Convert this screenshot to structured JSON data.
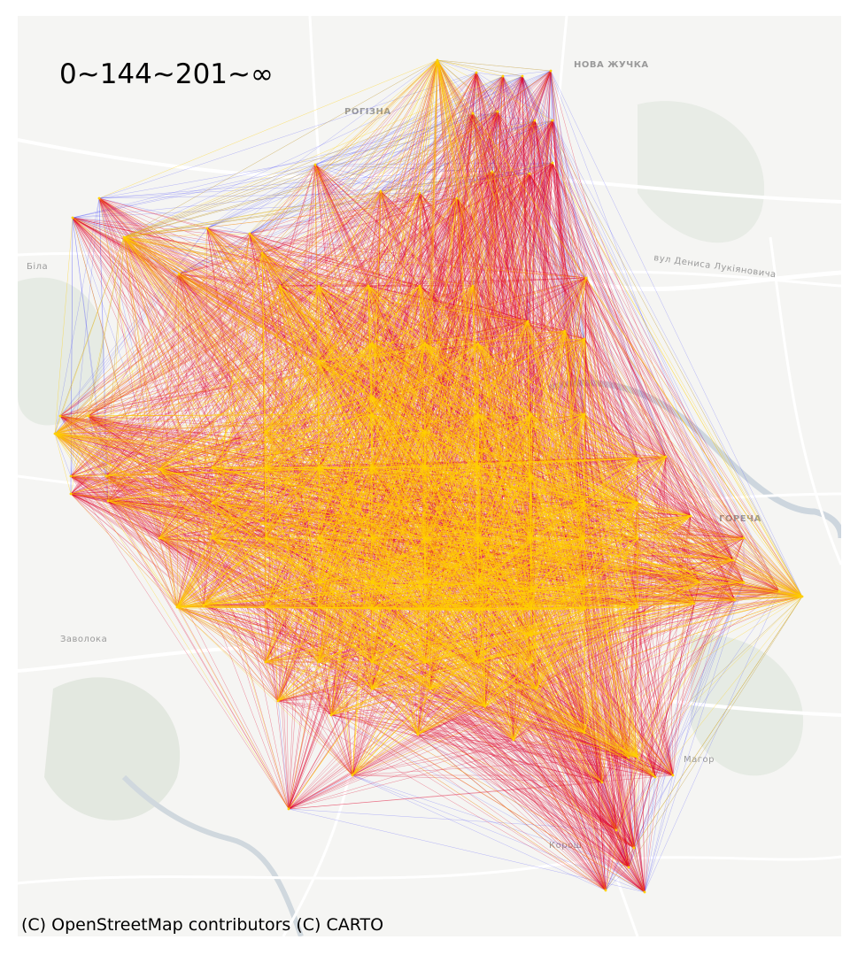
{
  "legend": {
    "bins_label": "0~144~201~∞"
  },
  "attribution": "(C) OpenStreetMap contributors (C) CARTO",
  "colors": {
    "low": "#0a0aff",
    "mid": "#e0002a",
    "high": "#ffd000",
    "basemap": "#f5f5f3",
    "road": "#ffffff",
    "water": "#c9d3dc",
    "park": "#e3e8e0"
  },
  "place_labels": {
    "nova_zhuchka": "НОВА ЖУЧКА",
    "rohizna": "РОГІЗНА",
    "bila": "Біла",
    "street": "вул Дениса Лукіяновича",
    "horecha": "ГОРЕЧА",
    "zavoloka": "Заволока",
    "mahor": "Магор",
    "korosh": "Корош"
  }
}
